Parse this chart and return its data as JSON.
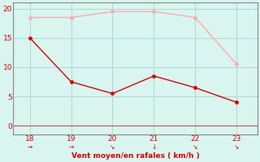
{
  "x": [
    18,
    19,
    20,
    21,
    22,
    23
  ],
  "y_moyen": [
    15,
    7.5,
    5.5,
    8.5,
    6.5,
    4
  ],
  "y_rafales": [
    18.5,
    18.5,
    19.5,
    19.5,
    18.5,
    10.5
  ],
  "line_color_moyen": "#dd0000",
  "line_color_rafales": "#ffaaaa",
  "bg_color": "#d8f5f0",
  "grid_color": "#b0d8d4",
  "spine_color": "#888888",
  "xlabel": "Vent moyen/en rafales ( km/h )",
  "xlabel_color": "#dd0000",
  "tick_color": "#dd0000",
  "ylim": [
    -1.5,
    21
  ],
  "xlim": [
    17.6,
    23.5
  ],
  "yticks": [
    0,
    5,
    10,
    15,
    20
  ],
  "xticks": [
    18,
    19,
    20,
    21,
    22,
    23
  ],
  "arrow_chars": [
    "→",
    "→",
    "↘",
    "↓",
    "↘",
    "↘"
  ],
  "figsize": [
    3.2,
    2.0
  ],
  "dpi": 100
}
